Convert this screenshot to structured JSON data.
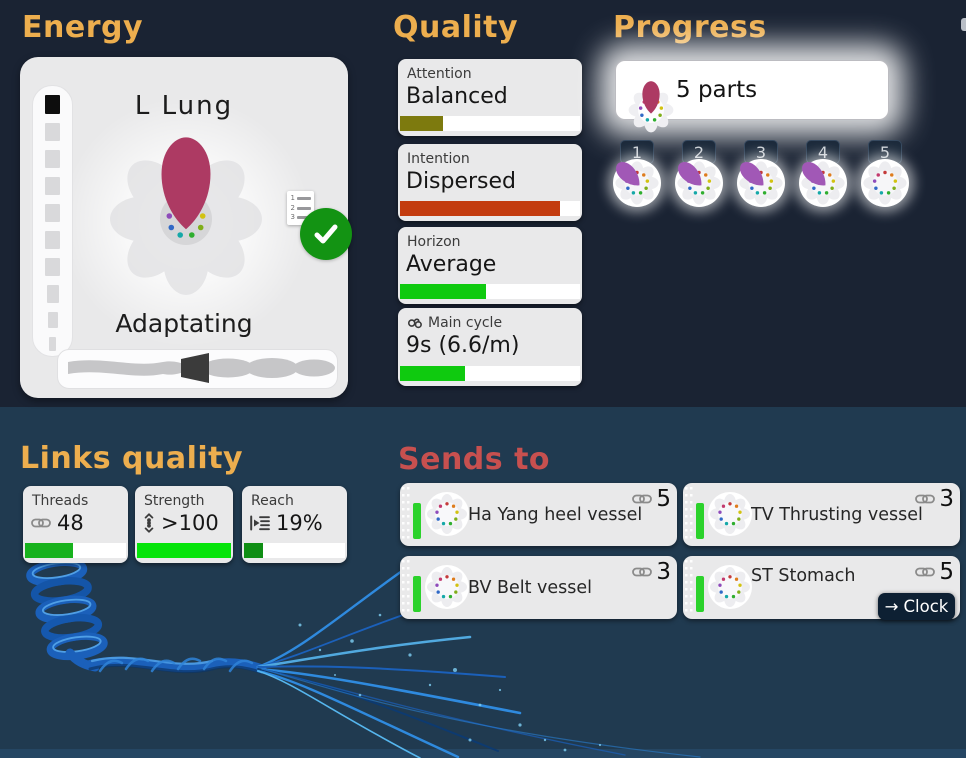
{
  "header": {
    "energy": "Energy",
    "quality": "Quality",
    "progress": "Progress",
    "links_quality": "Links quality",
    "sends_to": "Sends to"
  },
  "energy": {
    "organ": "L Lung",
    "state": "Adaptating",
    "checklist": [
      "1",
      "2",
      "3"
    ]
  },
  "quality": {
    "stats": [
      {
        "label": "Attention",
        "value": "Balanced",
        "pct": 24,
        "color": "#7d7a0e"
      },
      {
        "label": "Intention",
        "value": "Dispersed",
        "pct": 89,
        "color": "#c33c0f"
      },
      {
        "label": "Horizon",
        "value": "Average",
        "pct": 48,
        "color": "#0fca0f"
      },
      {
        "label": "Main cycle",
        "value": "9s (6.6/m)",
        "pct": 36,
        "color": "#0fca0f"
      }
    ]
  },
  "progress": {
    "summary": "5 parts",
    "badges": [
      {
        "num": "1",
        "filled": true
      },
      {
        "num": "2",
        "filled": true
      },
      {
        "num": "3",
        "filled": true
      },
      {
        "num": "4",
        "filled": true
      },
      {
        "num": "5",
        "filled": false
      }
    ]
  },
  "links": {
    "stats": [
      {
        "label": "Threads",
        "value": "48",
        "pct": 48,
        "color": "#17b21d"
      },
      {
        "label": "Strength",
        "value": ">100",
        "pct": 100,
        "color": "#05e40a"
      },
      {
        "label": "Reach",
        "value": "19%",
        "pct": 19,
        "color": "#0f8e14"
      }
    ]
  },
  "sends": {
    "targets": [
      {
        "name": "Ha Yang heel vessel",
        "links": "5"
      },
      {
        "name": "TV Thrusting vessel",
        "links": "3"
      },
      {
        "name": "BV Belt vessel",
        "links": "3"
      },
      {
        "name": "ST Stomach",
        "links": "5"
      }
    ],
    "clock_arrow": "→",
    "clock_label": "Clock"
  },
  "colors": {
    "header_orange": "#edae4e",
    "sends_red": "#c7504f",
    "petal_crimson": "#ad3a63",
    "petal_purple": "#a158b6"
  }
}
